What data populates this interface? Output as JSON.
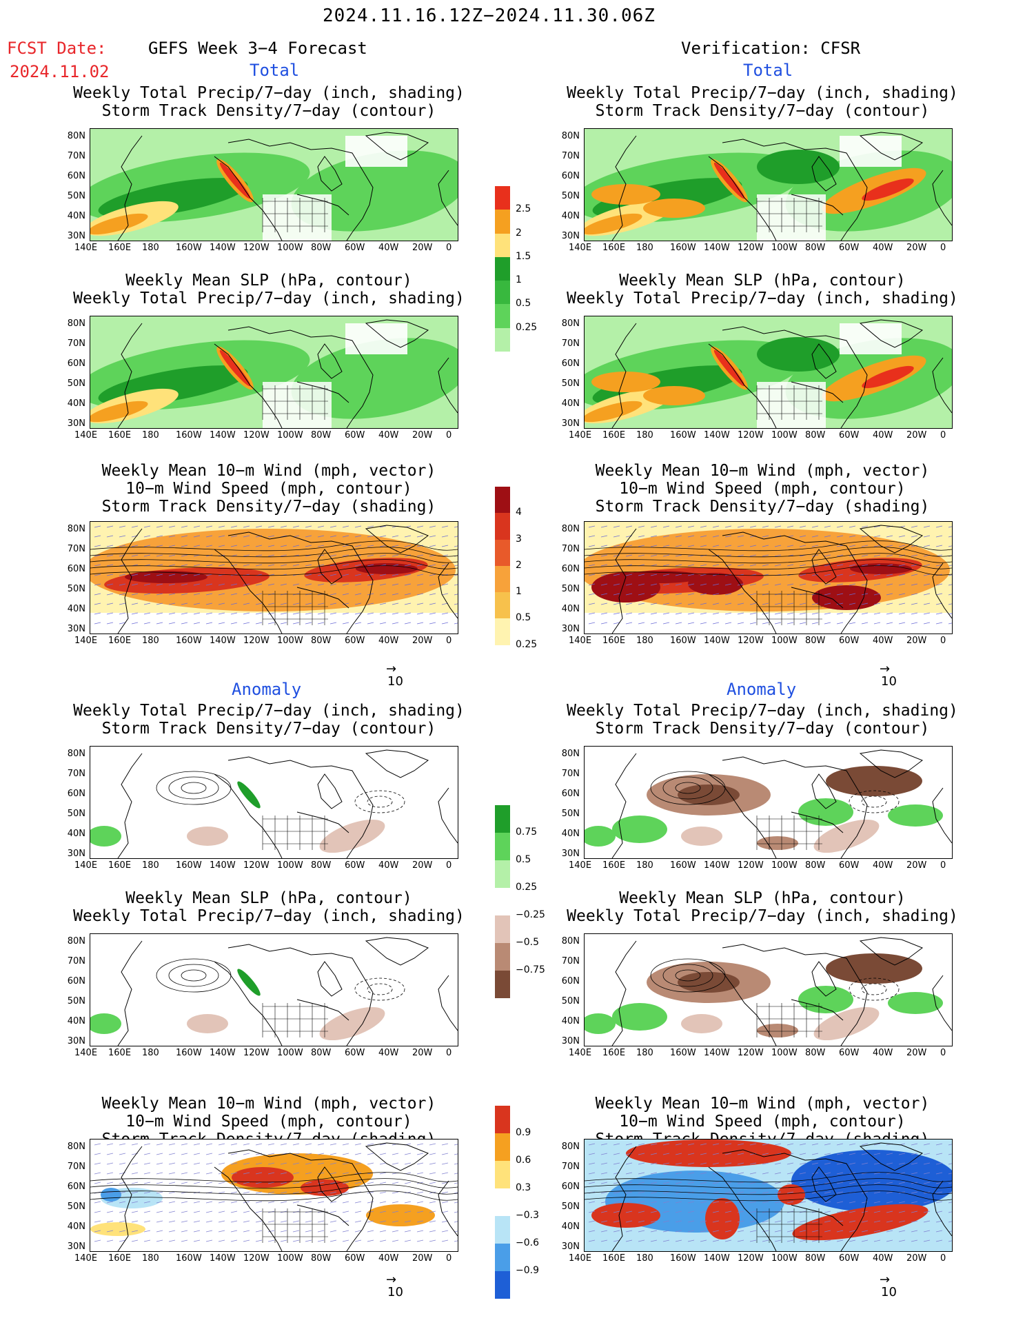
{
  "header": {
    "date_range": "2024.11.16.12Z−2024.11.30.06Z",
    "fcst_label": "FCST Date:",
    "fcst_date": "2024.11.02",
    "left_title": "GEFS Week 3−4 Forecast",
    "right_title": "Verification: CFSR"
  },
  "sections": {
    "total": "Total",
    "anomaly": "Anomaly"
  },
  "panel_titles": {
    "precip_storm": [
      "Weekly Total Precip/7−day (inch, shading)",
      "Storm Track Density/7−day (contour)"
    ],
    "slp_precip": [
      "Weekly Mean SLP (hPa, contour)",
      "Weekly Total Precip/7−day (inch, shading)"
    ],
    "wind_storm": [
      "Weekly Mean 10−m Wind (mph, vector)",
      "10−m Wind Speed (mph, contour)",
      "Storm Track Density/7−day (shading)"
    ]
  },
  "axes": {
    "lat_labels": [
      "80N",
      "70N",
      "60N",
      "50N",
      "40N",
      "30N"
    ],
    "lon_labels": [
      "140E",
      "160E",
      "180",
      "160W",
      "140W",
      "120W",
      "100W",
      "80W",
      "60W",
      "40W",
      "20W",
      "0"
    ]
  },
  "colorbars": {
    "precip_total": [
      "2.5",
      "2",
      "1.5",
      "1",
      "0.5",
      "0.25"
    ],
    "storm_total": [
      "4",
      "3",
      "2",
      "1",
      "0.5",
      "0.25"
    ],
    "precip_anom": [
      "0.75",
      "0.5",
      "0.25",
      "−0.25",
      "−0.5",
      "−0.75"
    ],
    "storm_anom": [
      "0.9",
      "0.6",
      "0.3",
      "−0.3",
      "−0.6",
      "−0.9"
    ]
  },
  "vector_ref": "10",
  "colors": {
    "precip_light": "#b4f0a8",
    "precip_mid": "#5ed35a",
    "precip_dark": "#1f9e2a",
    "precip_yellow": "#ffe27a",
    "precip_orange": "#f5a020",
    "precip_red": "#e8301c",
    "storm_pale": "#fff3b0",
    "storm_orange": "#f7a23a",
    "storm_red": "#d9351e",
    "storm_darkred": "#9e0f14",
    "dry_light": "#e2c4b8",
    "dry_mid": "#b98a74",
    "dry_dark": "#7a4a36",
    "anom_blue_light": "#b8e4f6",
    "anom_blue": "#4a9ee8",
    "anom_blue_dark": "#1e5fd6"
  }
}
